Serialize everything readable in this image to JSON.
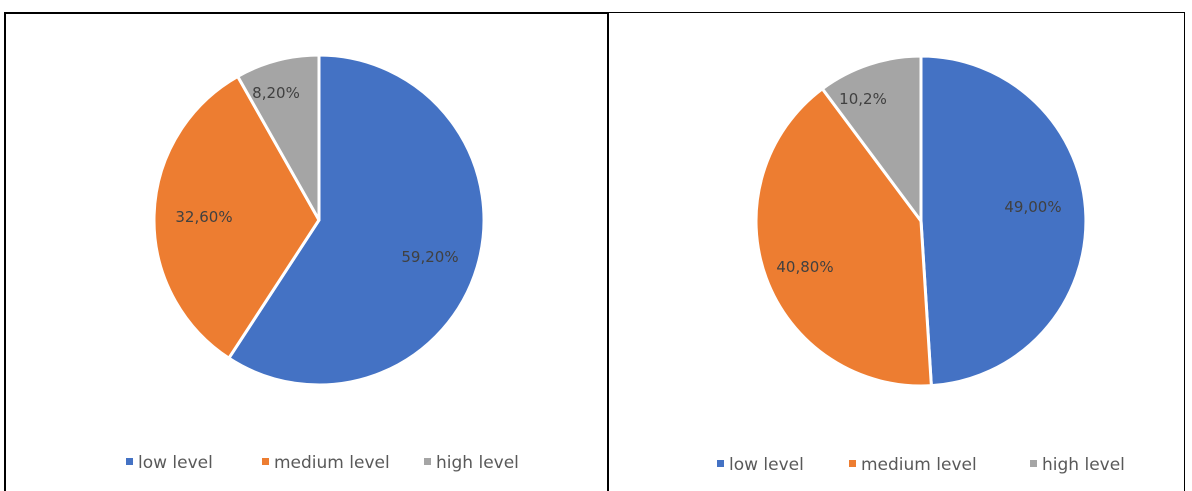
{
  "chart_data": [
    {
      "type": "pie",
      "categories": [
        "low level",
        "medium level",
        "high level"
      ],
      "values": [
        59.2,
        32.6,
        8.2
      ],
      "labels": [
        "59,20%",
        "32,60%",
        "8,20%"
      ],
      "colors": [
        "#4472C4",
        "#ED7D31",
        "#A5A5A5"
      ],
      "legend": {
        "position": "bottom",
        "entries": [
          "low level",
          "medium level",
          "high level"
        ]
      }
    },
    {
      "type": "pie",
      "categories": [
        "low level",
        "medium level",
        "high level"
      ],
      "values": [
        49.0,
        40.8,
        10.2
      ],
      "labels": [
        "49,00%",
        "40,80%",
        "10,2%"
      ],
      "colors": [
        "#4472C4",
        "#ED7D31",
        "#A5A5A5"
      ],
      "legend": {
        "position": "bottom",
        "entries": [
          "low level",
          "medium level",
          "high level"
        ]
      }
    }
  ]
}
